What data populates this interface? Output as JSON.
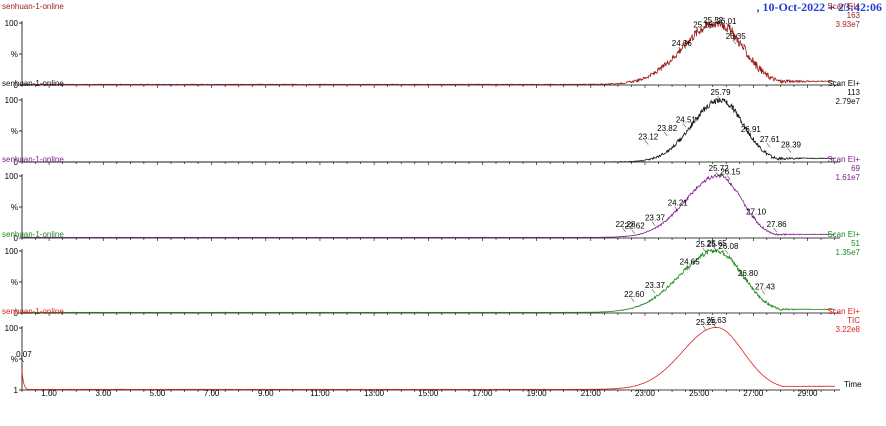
{
  "header": {
    "title": ", 10-Oct-2022 + 23:42:06"
  },
  "chart_data": {
    "type": "line",
    "x_axis": {
      "label": "Time",
      "range": [
        0,
        30.2
      ],
      "ticks": [
        1.0,
        3.0,
        5.0,
        7.0,
        9.0,
        11.0,
        13.0,
        15.0,
        17.0,
        19.0,
        21.0,
        23.0,
        25.0,
        27.0,
        29.0
      ],
      "tick_labels": [
        "1.00",
        "3.00",
        "5.00",
        "7.00",
        "9.00",
        "11.00",
        "13.00",
        "15.00",
        "17.00",
        "19.00",
        "21.00",
        "23.00",
        "25.00",
        "27.00",
        "29.00"
      ]
    },
    "panels": [
      {
        "name": "senhuan-1-online",
        "scan": "Scan EI+",
        "channel": "163",
        "intensity": "3.93e7",
        "color": "#9b1b1b",
        "y_ticks": [
          "100",
          "%",
          "0"
        ],
        "peak": {
          "center": 25.65,
          "sigma_left": 1.25,
          "sigma_right": 0.95,
          "baseline": 0.01,
          "tail": 0.05,
          "noise": 0.09
        },
        "labels": [
          {
            "x": 24.36,
            "y": 0.55,
            "text": "24.36"
          },
          {
            "x": 25.15,
            "y": 0.85,
            "text": "25.15"
          },
          {
            "x": 25.52,
            "y": 0.92,
            "text": "25.52"
          },
          {
            "x": 26.01,
            "y": 0.9,
            "text": "26.01"
          },
          {
            "x": 26.35,
            "y": 0.66,
            "text": "26.35"
          }
        ]
      },
      {
        "name": "senhuan-1-online",
        "scan": "Scan EI+",
        "channel": "113",
        "intensity": "2.79e7",
        "color": "#111111",
        "y_ticks": [
          "100",
          "%",
          "0"
        ],
        "peak": {
          "center": 25.79,
          "sigma_left": 1.05,
          "sigma_right": 0.85,
          "baseline": 0.0,
          "tail": 0.06,
          "noise": 0.05
        },
        "labels": [
          {
            "x": 23.12,
            "y": 0.28,
            "text": "23.12"
          },
          {
            "x": 23.82,
            "y": 0.42,
            "text": "23.82"
          },
          {
            "x": 24.51,
            "y": 0.56,
            "text": "24.51"
          },
          {
            "x": 25.79,
            "y": 1.0,
            "text": "25.79"
          },
          {
            "x": 26.91,
            "y": 0.4,
            "text": "26.91"
          },
          {
            "x": 27.61,
            "y": 0.24,
            "text": "27.61"
          },
          {
            "x": 28.39,
            "y": 0.15,
            "text": "28.39"
          }
        ]
      },
      {
        "name": "senhuan-1-online",
        "scan": "Scan EI+",
        "channel": "69",
        "intensity": "1.61e7",
        "color": "#7d1f8a",
        "y_ticks": [
          "100",
          "%",
          "0"
        ],
        "peak": {
          "center": 25.72,
          "sigma_left": 1.2,
          "sigma_right": 0.85,
          "baseline": 0.01,
          "tail": 0.05,
          "noise": 0.03
        },
        "labels": [
          {
            "x": 22.28,
            "y": 0.1,
            "text": "22.28"
          },
          {
            "x": 22.62,
            "y": 0.07,
            "text": "22.62"
          },
          {
            "x": 23.37,
            "y": 0.2,
            "text": "23.37"
          },
          {
            "x": 24.21,
            "y": 0.44,
            "text": "24.21"
          },
          {
            "x": 25.72,
            "y": 1.0,
            "text": "25.72"
          },
          {
            "x": 26.15,
            "y": 0.94,
            "text": "26.15"
          },
          {
            "x": 27.1,
            "y": 0.3,
            "text": "27.10"
          },
          {
            "x": 27.86,
            "y": 0.1,
            "text": "27.86"
          }
        ]
      },
      {
        "name": "senhuan-1-online",
        "scan": "Scan EI+",
        "channel": "51",
        "intensity": "1.35e7",
        "color": "#1c8a1c",
        "y_ticks": [
          "100",
          "%",
          "0"
        ],
        "peak": {
          "center": 25.65,
          "sigma_left": 1.35,
          "sigma_right": 0.95,
          "baseline": 0.01,
          "tail": 0.05,
          "noise": 0.04
        },
        "labels": [
          {
            "x": 22.6,
            "y": 0.18,
            "text": "22.60"
          },
          {
            "x": 23.37,
            "y": 0.32,
            "text": "23.37"
          },
          {
            "x": 24.65,
            "y": 0.7,
            "text": "24.65"
          },
          {
            "x": 25.25,
            "y": 0.98,
            "text": "25.25"
          },
          {
            "x": 25.65,
            "y": 1.0,
            "text": "25.65"
          },
          {
            "x": 26.08,
            "y": 0.95,
            "text": "26.08"
          },
          {
            "x": 26.8,
            "y": 0.52,
            "text": "26.80"
          },
          {
            "x": 27.43,
            "y": 0.3,
            "text": "27.43"
          }
        ]
      },
      {
        "name": "senhuan-1-online",
        "scan": "Scan EI+",
        "channel": "TIC",
        "intensity": "3.22e8",
        "color": "#e02020",
        "y_ticks": [
          "100",
          "%",
          "1"
        ],
        "peak": {
          "center": 25.63,
          "sigma_left": 1.25,
          "sigma_right": 1.0,
          "baseline": 0.01,
          "tail": 0.05,
          "noise": 0.0,
          "start_spike": 0.32
        },
        "labels": [
          {
            "x": 0.07,
            "y": 0.45,
            "text": "0.07"
          },
          {
            "x": 25.25,
            "y": 0.97,
            "text": "25.25"
          },
          {
            "x": 25.63,
            "y": 1.0,
            "text": "25.63"
          }
        ]
      }
    ]
  }
}
